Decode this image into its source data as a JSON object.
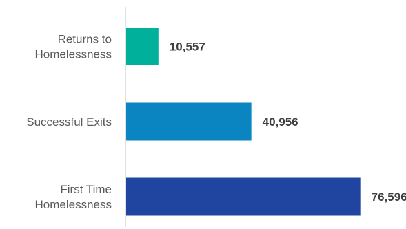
{
  "chart_data": {
    "type": "bar",
    "orientation": "horizontal",
    "title": "",
    "xlabel": "",
    "ylabel": "",
    "categories": [
      "Returns to Homelessness",
      "Successful Exits",
      "First Time Homelessness"
    ],
    "category_lines": [
      [
        "Returns to",
        "Homelessness"
      ],
      [
        "Successful Exits"
      ],
      [
        "First Time",
        "Homelessness"
      ]
    ],
    "values": [
      10557,
      40956,
      76596
    ],
    "value_labels": [
      "10,557",
      "40,956",
      "76,596"
    ],
    "colors": [
      "#00b09b",
      "#0a85c2",
      "#1f45a0"
    ],
    "xlim": [
      0,
      92000
    ],
    "grid": false,
    "legend": "none"
  }
}
